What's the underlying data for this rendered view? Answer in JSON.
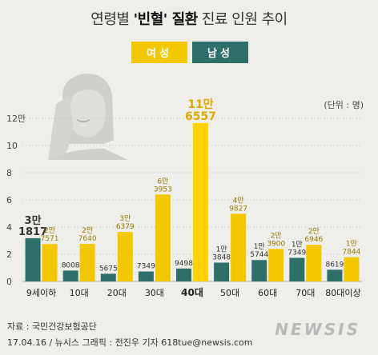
{
  "header": {
    "title_pre": "연령별 ",
    "title_bold": "'빈혈' 질환",
    "title_post": " 진료 인원 추이"
  },
  "legend": {
    "female": "여성",
    "male": "남성"
  },
  "unit_label": "(단위 : 명)",
  "footer": {
    "source": "자료 : 국민건강보험공단",
    "credit": "17.04.16 / 뉴시스 그래픽 : 전진우 기자 618tue@newsis.com",
    "logo": "NEWSIS"
  },
  "colors": {
    "female": "#f4c800",
    "male": "#2f6f6a",
    "highlight_female": "#ffd200",
    "grid": "#bdbdbd",
    "background": "#eeeeea"
  },
  "chart_data": {
    "type": "bar",
    "categories": [
      "9세이하",
      "10대",
      "20대",
      "30대",
      "40대",
      "50대",
      "60대",
      "70대",
      "80대이상"
    ],
    "highlight_category": "40대",
    "y_tick_labels": [
      "0",
      "2",
      "4",
      "6",
      "8",
      "10",
      "12만"
    ],
    "ylim": [
      0,
      120000
    ],
    "series": [
      {
        "name": "남성",
        "values": [
          31817,
          8008,
          5675,
          7349,
          9498,
          13848,
          15744,
          17349,
          8619
        ],
        "labels": [
          [
            "3만",
            "1817"
          ],
          [
            "8008"
          ],
          [
            "5675"
          ],
          [
            "7349"
          ],
          [
            "9498"
          ],
          [
            "1만",
            "3848"
          ],
          [
            "1만",
            "5744"
          ],
          [
            "1만",
            "7349"
          ],
          [
            "8619"
          ]
        ]
      },
      {
        "name": "여성",
        "values": [
          27571,
          27640,
          36379,
          63953,
          116557,
          49827,
          23900,
          26946,
          17844
        ],
        "labels": [
          [
            "2만",
            "7571"
          ],
          [
            "2만",
            "7640"
          ],
          [
            "3만",
            "6379"
          ],
          [
            "6만",
            "3953"
          ],
          [
            "11만",
            "6557"
          ],
          [
            "4만",
            "9827"
          ],
          [
            "2만",
            "3900"
          ],
          [
            "2만",
            "6946"
          ],
          [
            "1만",
            "7844"
          ]
        ]
      }
    ]
  }
}
